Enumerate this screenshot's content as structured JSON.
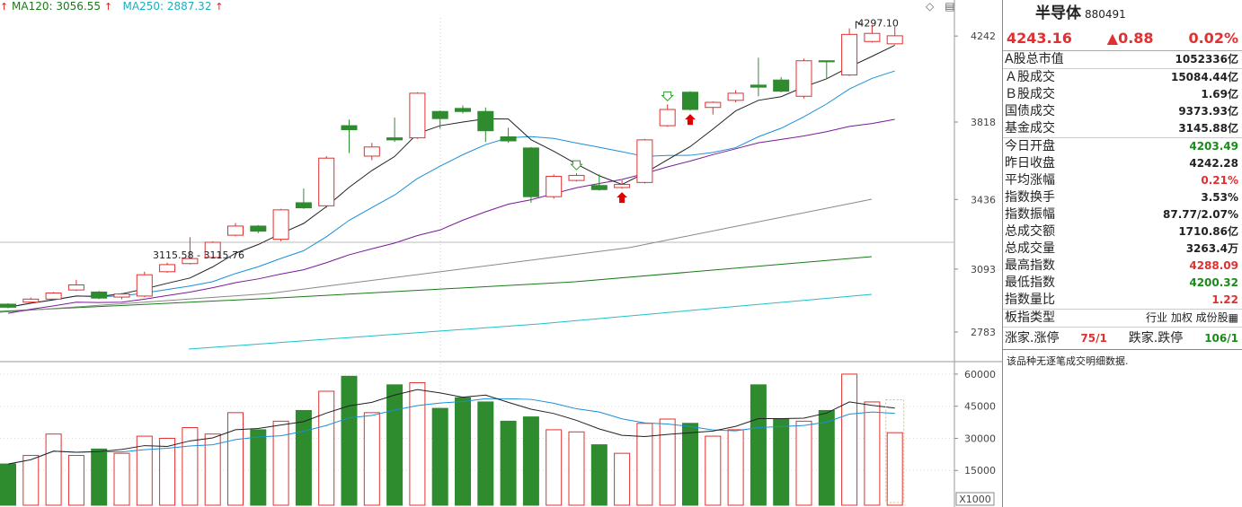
{
  "legend": {
    "ma120_label": "MA120: 3056.55",
    "ma250_label": "MA250: 2887.32",
    "arrow": "↑"
  },
  "colors": {
    "up": "#e03030",
    "down": "#2e8b2e",
    "ma5": "#222222",
    "ma10": "#1a8fd8",
    "ma20": "#7a1a9a",
    "ma60": "#888888",
    "ma120": "#1a7a1a",
    "ma250": "#20c0c8"
  },
  "price_axis": {
    "ticks": [
      "4242",
      "3818",
      "3436",
      "3093",
      "2783"
    ]
  },
  "volume_axis": {
    "ticks": [
      "60000",
      "45000",
      "30000",
      "15000"
    ],
    "unit": "X1000"
  },
  "annotations": {
    "high_label": "4297.10",
    "low_label": "3115.58 - 3115.76"
  },
  "chart_data": {
    "type": "candlestick",
    "price_ylim": [
      2650,
      4340
    ],
    "volume_ylim": [
      0,
      65000
    ],
    "candles": [
      {
        "o": 2920,
        "c": 2905,
        "h": 2925,
        "l": 2900,
        "v": 18000
      },
      {
        "o": 2930,
        "c": 2945,
        "h": 2952,
        "l": 2925,
        "v": 22000
      },
      {
        "o": 2945,
        "c": 2975,
        "h": 2980,
        "l": 2940,
        "v": 32000
      },
      {
        "o": 2990,
        "c": 3015,
        "h": 3040,
        "l": 2985,
        "v": 22000
      },
      {
        "o": 2980,
        "c": 2950,
        "h": 2985,
        "l": 2945,
        "v": 25000
      },
      {
        "o": 2955,
        "c": 2970,
        "h": 2975,
        "l": 2945,
        "v": 23000
      },
      {
        "o": 2960,
        "c": 3065,
        "h": 3080,
        "l": 2955,
        "v": 31000
      },
      {
        "o": 3080,
        "c": 3115,
        "h": 3125,
        "l": 3075,
        "v": 30000
      },
      {
        "o": 3120,
        "c": 3145,
        "h": 3250,
        "l": 3115.6,
        "v": 35000
      },
      {
        "o": 3150,
        "c": 3225,
        "h": 3230,
        "l": 3145,
        "v": 32000
      },
      {
        "o": 3260,
        "c": 3305,
        "h": 3320,
        "l": 3255,
        "v": 42000
      },
      {
        "o": 3305,
        "c": 3280,
        "h": 3310,
        "l": 3270,
        "v": 34000
      },
      {
        "o": 3240,
        "c": 3385,
        "h": 3390,
        "l": 3230,
        "v": 38000
      },
      {
        "o": 3420,
        "c": 3395,
        "h": 3490,
        "l": 3390,
        "v": 43000
      },
      {
        "o": 3405,
        "c": 3640,
        "h": 3650,
        "l": 3395,
        "v": 52000
      },
      {
        "o": 3800,
        "c": 3780,
        "h": 3830,
        "l": 3665,
        "v": 59000
      },
      {
        "o": 3650,
        "c": 3695,
        "h": 3715,
        "l": 3630,
        "v": 42000
      },
      {
        "o": 3740,
        "c": 3730,
        "h": 3840,
        "l": 3720,
        "v": 55000
      },
      {
        "o": 3740,
        "c": 3960,
        "h": 3965,
        "l": 3735,
        "v": 56000
      },
      {
        "o": 3870,
        "c": 3835,
        "h": 3875,
        "l": 3785,
        "v": 44000
      },
      {
        "o": 3885,
        "c": 3870,
        "h": 3900,
        "l": 3860,
        "v": 49000
      },
      {
        "o": 3870,
        "c": 3775,
        "h": 3890,
        "l": 3720,
        "v": 47000
      },
      {
        "o": 3745,
        "c": 3725,
        "h": 3790,
        "l": 3715,
        "v": 38000
      },
      {
        "o": 3690,
        "c": 3450,
        "h": 3695,
        "l": 3420,
        "v": 40000
      },
      {
        "o": 3450,
        "c": 3550,
        "h": 3560,
        "l": 3440,
        "v": 34000
      },
      {
        "o": 3530,
        "c": 3555,
        "h": 3565,
        "l": 3525,
        "v": 33000
      },
      {
        "o": 3505,
        "c": 3485,
        "h": 3560,
        "l": 3480,
        "v": 27000
      },
      {
        "o": 3495,
        "c": 3510,
        "h": 3530,
        "l": 3490,
        "v": 23000
      },
      {
        "o": 3520,
        "c": 3730,
        "h": 3735,
        "l": 3515,
        "v": 37000
      },
      {
        "o": 3800,
        "c": 3880,
        "h": 3905,
        "l": 3795,
        "v": 39000
      },
      {
        "o": 3965,
        "c": 3880,
        "h": 3970,
        "l": 3875,
        "v": 37000
      },
      {
        "o": 3890,
        "c": 3915,
        "h": 3920,
        "l": 3855,
        "v": 31000
      },
      {
        "o": 3925,
        "c": 3960,
        "h": 3975,
        "l": 3915,
        "v": 34000
      },
      {
        "o": 4000,
        "c": 3990,
        "h": 4135,
        "l": 3945,
        "v": 55000
      },
      {
        "o": 4025,
        "c": 3970,
        "h": 4040,
        "l": 3965,
        "v": 39000
      },
      {
        "o": 3945,
        "c": 4120,
        "h": 4130,
        "l": 3935,
        "v": 38000
      },
      {
        "o": 4120,
        "c": 4115,
        "h": 4120,
        "l": 4030,
        "v": 43000
      },
      {
        "o": 4050,
        "c": 4250,
        "h": 4280,
        "l": 4045,
        "v": 60000
      },
      {
        "o": 4215,
        "c": 4255,
        "h": 4297.1,
        "l": 4210,
        "v": 47000
      },
      {
        "o": 4203.49,
        "c": 4243.16,
        "h": 4288.09,
        "l": 4200.32,
        "v": 32634
      }
    ],
    "markers": [
      {
        "index": 25,
        "type": "down-arrow-green"
      },
      {
        "index": 27,
        "type": "up-arrow-red"
      },
      {
        "index": 29,
        "type": "down-arrow-green"
      },
      {
        "index": 30,
        "type": "up-arrow-red"
      }
    ]
  },
  "panel": {
    "name": "半导体",
    "code": "880491",
    "price": "4243.16",
    "change": "▲0.88",
    "change_pct": "0.02%",
    "rows": [
      {
        "label": "A股总市值",
        "value": "1052336亿",
        "color": ""
      },
      {
        "label": "Ａ股成交",
        "value": "15084.44亿",
        "color": ""
      },
      {
        "label": "Ｂ股成交",
        "value": "1.69亿",
        "color": ""
      },
      {
        "label": "国债成交",
        "value": "9373.93亿",
        "color": ""
      },
      {
        "label": "基金成交",
        "value": "3145.88亿",
        "color": ""
      },
      {
        "label": "今日开盘",
        "value": "4203.49",
        "color": "green"
      },
      {
        "label": "昨日收盘",
        "value": "4242.28",
        "color": ""
      },
      {
        "label": "平均涨幅",
        "value": "0.21%",
        "color": "red"
      },
      {
        "label": "指数换手",
        "value": "3.53%",
        "color": ""
      },
      {
        "label": "指数振幅",
        "value": "87.77/2.07%",
        "color": ""
      },
      {
        "label": "总成交额",
        "value": "1710.86亿",
        "color": ""
      },
      {
        "label": "总成交量",
        "value": "3263.4万",
        "color": ""
      },
      {
        "label": "最高指数",
        "value": "4288.09",
        "color": "red"
      },
      {
        "label": "最低指数",
        "value": "4200.32",
        "color": "green"
      },
      {
        "label": "指数量比",
        "value": "1.22",
        "color": "red"
      }
    ],
    "plate": {
      "label": "板指类型",
      "value": "行业 加权 成份股▦"
    },
    "breadth": {
      "up_label": "涨家.涨停",
      "up_value": "75/1",
      "down_label": "跌家.跌停",
      "down_value": "106/1"
    },
    "note": "该品种无逐笔成交明细数据."
  }
}
